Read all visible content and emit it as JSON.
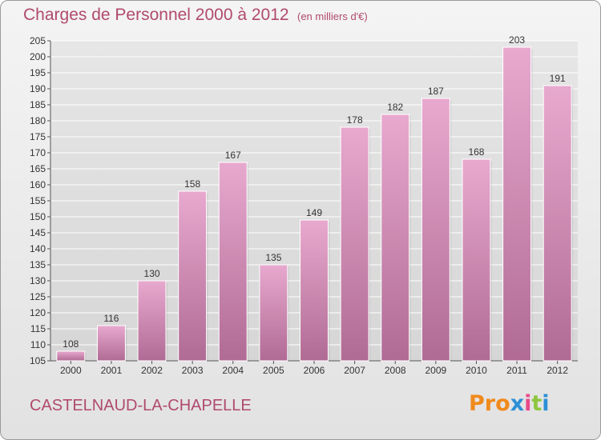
{
  "header": {
    "title": "Charges de Personnel 2000 à 2012",
    "subtitle": "(en milliers d'€)"
  },
  "footer": {
    "commune": "CASTELNAUD-LA-CHAPELLE",
    "logo_text": "Proxiti"
  },
  "colors": {
    "title": "#b04a6e",
    "bar_top": "#e8a9cf",
    "bar_bottom": "#b06b94",
    "logo_letters": [
      "#f08a1c",
      "#f08a1c",
      "#f08a1c",
      "#2c8fd6",
      "#e84a8a",
      "#8cc63f",
      "#2c8fd6"
    ]
  },
  "chart_data": {
    "type": "bar",
    "categories": [
      "2000",
      "2001",
      "2002",
      "2003",
      "2004",
      "2005",
      "2006",
      "2007",
      "2008",
      "2009",
      "2010",
      "2011",
      "2012"
    ],
    "values": [
      108,
      116,
      130,
      158,
      167,
      135,
      149,
      178,
      182,
      187,
      168,
      203,
      191
    ],
    "title": "Charges de Personnel 2000 à 2012",
    "ylim": [
      105,
      205
    ],
    "yticks": [
      105,
      110,
      115,
      120,
      125,
      130,
      135,
      140,
      145,
      150,
      155,
      160,
      165,
      170,
      175,
      180,
      185,
      190,
      195,
      200,
      205
    ],
    "grid": true
  }
}
